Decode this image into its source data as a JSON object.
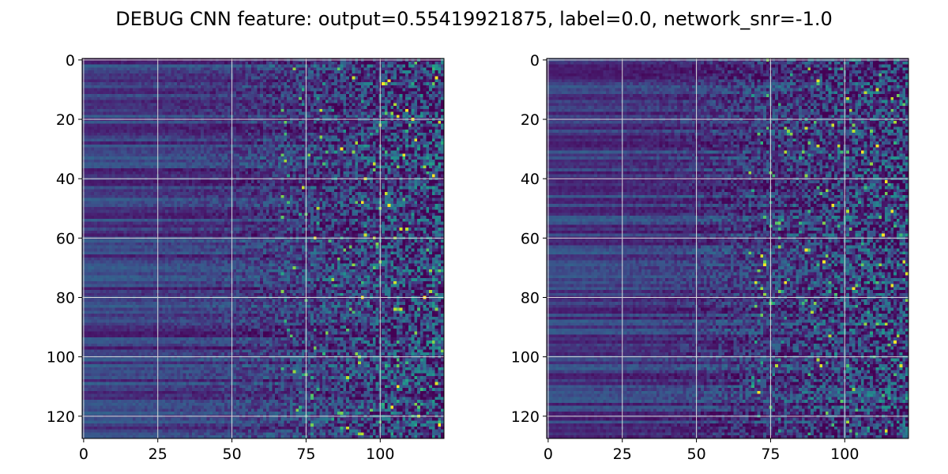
{
  "figure": {
    "title": "DEBUG CNN feature: output=0.55419921875, label=0.0, network_snr=-1.0"
  },
  "chart_data": [
    {
      "type": "heatmap",
      "title": "",
      "xlabel": "",
      "ylabel": "",
      "n_rows": 128,
      "n_cols": 122,
      "x_ticks": [
        0,
        25,
        50,
        75,
        100
      ],
      "y_ticks": [
        0,
        20,
        40,
        60,
        80,
        100,
        120
      ],
      "x_tick_labels": [
        "0",
        "25",
        "50",
        "75",
        "100"
      ],
      "y_tick_labels": [
        "0",
        "20",
        "40",
        "60",
        "80",
        "100",
        "120"
      ],
      "xlim": [
        -0.5,
        121.5
      ],
      "ylim": [
        127.5,
        -0.5
      ],
      "grid": true,
      "colormap": "viridis",
      "note_values": "Values increase in variance from left (smooth horizontal bands) to right (noisy speckle).",
      "seed": 7
    },
    {
      "type": "heatmap",
      "title": "",
      "xlabel": "",
      "ylabel": "",
      "n_rows": 128,
      "n_cols": 122,
      "x_ticks": [
        0,
        25,
        50,
        75,
        100
      ],
      "y_ticks": [
        0,
        20,
        40,
        60,
        80,
        100,
        120
      ],
      "x_tick_labels": [
        "0",
        "25",
        "50",
        "75",
        "100"
      ],
      "y_tick_labels": [
        "0",
        "20",
        "40",
        "60",
        "80",
        "100",
        "120"
      ],
      "xlim": [
        -0.5,
        121.5
      ],
      "ylim": [
        127.5,
        -0.5
      ],
      "grid": true,
      "colormap": "viridis",
      "note_values": "Values increase in variance from left (smooth horizontal bands) to right (noisy speckle).",
      "seed": 13
    }
  ],
  "colors": {
    "grid": "#d9d9d9",
    "axis": "#000000",
    "viridis_low": "#440154",
    "viridis_mid": "#21918c",
    "viridis_high": "#fde725"
  }
}
